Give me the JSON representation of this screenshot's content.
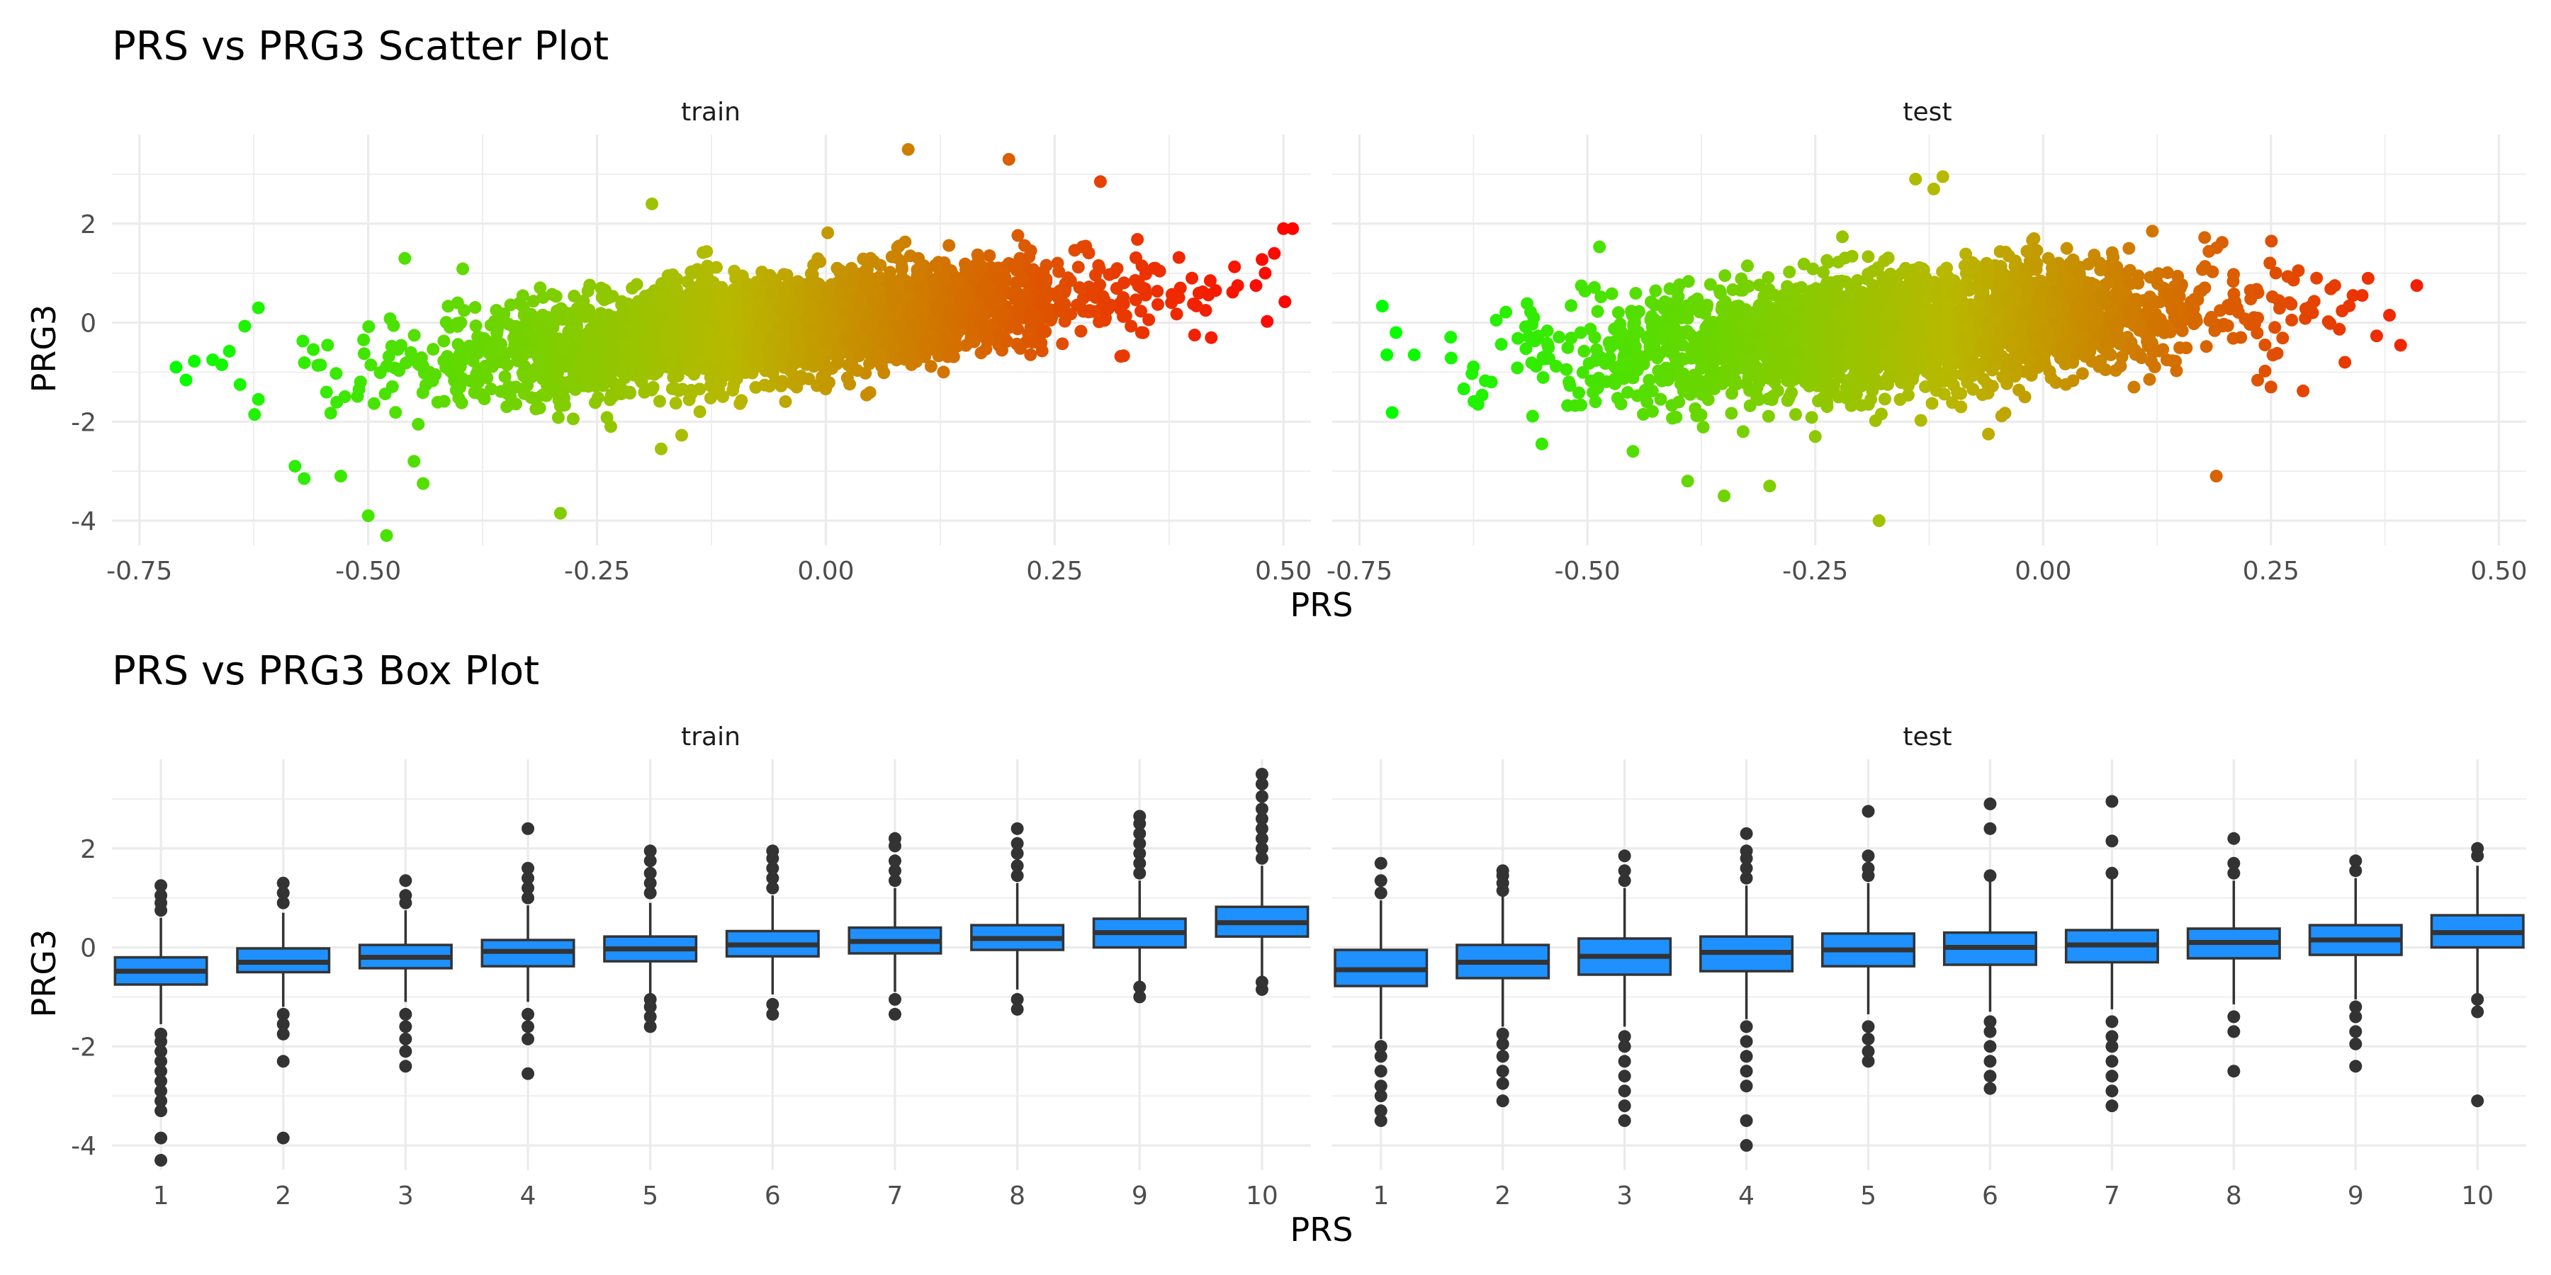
{
  "scatter": {
    "title": "PRS vs PRG3 Scatter Plot",
    "xlabel": "PRS",
    "ylabel": "PRG3",
    "x_ticks": [
      "-0.75",
      "-0.50",
      "-0.25",
      "0.00",
      "0.25",
      "0.50"
    ],
    "y_ticks": [
      "-4",
      "-2",
      "0",
      "2"
    ],
    "panels": [
      "train",
      "test"
    ]
  },
  "box": {
    "title": "PRS vs PRG3 Box Plot",
    "xlabel": "PRS",
    "ylabel": "PRG3",
    "x_ticks": [
      "1",
      "2",
      "3",
      "4",
      "5",
      "6",
      "7",
      "8",
      "9",
      "10"
    ],
    "y_ticks": [
      "-4",
      "-2",
      "0",
      "2"
    ],
    "panels": [
      "train",
      "test"
    ]
  },
  "colors": {
    "gradient_low": "#00ff00",
    "gradient_mid": "#b8b800",
    "gradient_high": "#ff0000",
    "box_fill": "#1e90ff",
    "box_line": "#333333",
    "grid": "#ebebeb"
  },
  "chart_data": [
    {
      "type": "scatter",
      "title": "PRS vs PRG3 Scatter Plot",
      "xlabel": "PRS",
      "ylabel": "PRG3",
      "xlim": [
        -0.78,
        0.53
      ],
      "ylim": [
        -4.5,
        3.8
      ],
      "x_ticks": [
        -0.75,
        -0.5,
        -0.25,
        0,
        0.25,
        0.5
      ],
      "y_ticks": [
        -4,
        -2,
        0,
        2
      ],
      "grid": true,
      "color_scale": "PRS: green (low) to red (high)",
      "panels": [
        {
          "name": "train",
          "trend": {
            "slope": 1.8,
            "intercept": 0.02,
            "spread_sd": 0.5
          },
          "x_range": [
            -0.72,
            0.51
          ],
          "notable_points": [
            [
              -0.71,
              -0.9
            ],
            [
              -0.69,
              -0.78
            ],
            [
              -0.67,
              -0.75
            ],
            [
              -0.66,
              -0.85
            ],
            [
              -0.64,
              -1.25
            ],
            [
              -0.62,
              -1.55
            ],
            [
              -0.62,
              0.3
            ],
            [
              -0.58,
              -2.9
            ],
            [
              -0.57,
              -3.15
            ],
            [
              -0.53,
              -3.1
            ],
            [
              -0.5,
              -3.9
            ],
            [
              -0.48,
              -4.3
            ],
            [
              -0.45,
              -2.8
            ],
            [
              -0.44,
              -3.25
            ],
            [
              -0.46,
              1.3
            ],
            [
              -0.36,
              0.25
            ],
            [
              -0.29,
              -3.85
            ],
            [
              -0.19,
              2.4
            ],
            [
              -0.18,
              -2.55
            ],
            [
              0.09,
              3.5
            ],
            [
              0.2,
              3.3
            ],
            [
              0.3,
              2.85
            ],
            [
              0.36,
              1.1
            ],
            [
              0.4,
              0.9
            ],
            [
              0.42,
              0.85
            ],
            [
              0.45,
              0.75
            ],
            [
              0.47,
              0.75
            ],
            [
              0.48,
              1.0
            ],
            [
              0.49,
              1.4
            ],
            [
              0.5,
              1.9
            ],
            [
              0.51,
              1.9
            ]
          ]
        },
        {
          "name": "test",
          "trend": {
            "slope": 1.35,
            "intercept": 0.05,
            "spread_sd": 0.6
          },
          "x_range": [
            -0.73,
            0.41
          ],
          "notable_points": [
            [
              -0.72,
              -0.65
            ],
            [
              -0.71,
              -0.2
            ],
            [
              -0.69,
              -0.65
            ],
            [
              -0.62,
              -1.65
            ],
            [
              -0.6,
              0.05
            ],
            [
              -0.55,
              -2.45
            ],
            [
              -0.45,
              -2.6
            ],
            [
              -0.39,
              -3.2
            ],
            [
              -0.35,
              -3.5
            ],
            [
              -0.3,
              -3.3
            ],
            [
              -0.25,
              -2.3
            ],
            [
              -0.18,
              -4.0
            ],
            [
              -0.14,
              2.9
            ],
            [
              -0.12,
              2.7
            ],
            [
              -0.11,
              2.95
            ],
            [
              -0.06,
              -2.25
            ],
            [
              -0.02,
              -1.5
            ],
            [
              0.19,
              -3.1
            ],
            [
              0.25,
              -1.3
            ],
            [
              0.28,
              1.05
            ],
            [
              0.3,
              0.9
            ],
            [
              0.32,
              0.75
            ],
            [
              0.34,
              0.55
            ],
            [
              0.35,
              0.55
            ],
            [
              0.38,
              0.15
            ],
            [
              0.41,
              0.75
            ]
          ]
        }
      ]
    },
    {
      "type": "box",
      "title": "PRS vs PRG3 Box Plot",
      "xlabel": "PRS",
      "ylabel": "PRG3",
      "categories": [
        "1",
        "2",
        "3",
        "4",
        "5",
        "6",
        "7",
        "8",
        "9",
        "10"
      ],
      "ylim": [
        -4.5,
        3.8
      ],
      "y_ticks": [
        -4,
        -2,
        0,
        2
      ],
      "grid": true,
      "panels": [
        {
          "name": "train",
          "boxes": [
            {
              "q1": -0.75,
              "median": -0.48,
              "q3": -0.2,
              "whisker_low": -1.55,
              "whisker_high": 0.6,
              "outliers": [
                -4.3,
                -3.85,
                -3.3,
                -3.1,
                -2.9,
                -2.7,
                -2.5,
                -2.3,
                -2.1,
                -1.9,
                -1.75,
                0.75,
                0.9,
                1.05,
                1.25
              ]
            },
            {
              "q1": -0.5,
              "median": -0.3,
              "q3": -0.02,
              "whisker_low": -1.2,
              "whisker_high": 0.7,
              "outliers": [
                -3.85,
                -2.3,
                -1.75,
                -1.55,
                -1.35,
                0.9,
                1.1,
                1.3
              ]
            },
            {
              "q1": -0.42,
              "median": -0.2,
              "q3": 0.05,
              "whisker_low": -1.1,
              "whisker_high": 0.75,
              "outliers": [
                -2.4,
                -2.1,
                -1.85,
                -1.6,
                -1.35,
                0.9,
                1.05,
                1.35
              ]
            },
            {
              "q1": -0.38,
              "median": -0.08,
              "q3": 0.15,
              "whisker_low": -1.1,
              "whisker_high": 0.85,
              "outliers": [
                -2.55,
                -1.85,
                -1.6,
                -1.35,
                1.0,
                1.2,
                1.4,
                1.6,
                2.4
              ]
            },
            {
              "q1": -0.28,
              "median": -0.03,
              "q3": 0.22,
              "whisker_low": -1.0,
              "whisker_high": 0.9,
              "outliers": [
                -1.6,
                -1.4,
                -1.2,
                -1.05,
                1.1,
                1.3,
                1.5,
                1.75,
                1.95
              ]
            },
            {
              "q1": -0.18,
              "median": 0.05,
              "q3": 0.33,
              "whisker_low": -0.95,
              "whisker_high": 1.05,
              "outliers": [
                -1.35,
                -1.15,
                1.2,
                1.4,
                1.6,
                1.8,
                1.95
              ]
            },
            {
              "q1": -0.12,
              "median": 0.12,
              "q3": 0.4,
              "whisker_low": -0.9,
              "whisker_high": 1.2,
              "outliers": [
                -1.35,
                -1.05,
                1.35,
                1.55,
                1.75,
                2.05,
                2.2
              ]
            },
            {
              "q1": -0.05,
              "median": 0.18,
              "q3": 0.45,
              "whisker_low": -0.85,
              "whisker_high": 1.3,
              "outliers": [
                -1.25,
                -1.05,
                1.45,
                1.65,
                1.9,
                2.1,
                2.4
              ]
            },
            {
              "q1": 0.0,
              "median": 0.3,
              "q3": 0.58,
              "whisker_low": -0.7,
              "whisker_high": 1.35,
              "outliers": [
                -1.0,
                -0.8,
                1.5,
                1.7,
                1.9,
                2.1,
                2.3,
                2.5,
                2.65
              ]
            },
            {
              "q1": 0.22,
              "median": 0.5,
              "q3": 0.82,
              "whisker_low": -0.6,
              "whisker_high": 1.65,
              "outliers": [
                -0.85,
                -0.7,
                1.8,
                2.0,
                2.2,
                2.4,
                2.6,
                2.8,
                3.05,
                3.3,
                3.5
              ]
            }
          ]
        },
        {
          "name": "test",
          "boxes": [
            {
              "q1": -0.78,
              "median": -0.45,
              "q3": -0.05,
              "whisker_low": -1.85,
              "whisker_high": 0.95,
              "outliers": [
                -3.5,
                -3.3,
                -3.0,
                -2.8,
                -2.5,
                -2.2,
                -2.0,
                1.1,
                1.35,
                1.7
              ]
            },
            {
              "q1": -0.62,
              "median": -0.3,
              "q3": 0.05,
              "whisker_low": -1.6,
              "whisker_high": 1.05,
              "outliers": [
                -3.1,
                -2.75,
                -2.5,
                -2.2,
                -1.95,
                -1.75,
                1.15,
                1.3,
                1.45,
                1.55
              ]
            },
            {
              "q1": -0.55,
              "median": -0.18,
              "q3": 0.18,
              "whisker_low": -1.6,
              "whisker_high": 1.2,
              "outliers": [
                -3.5,
                -3.2,
                -2.9,
                -2.6,
                -2.3,
                -2.0,
                -1.8,
                1.35,
                1.55,
                1.85
              ]
            },
            {
              "q1": -0.48,
              "median": -0.1,
              "q3": 0.22,
              "whisker_low": -1.45,
              "whisker_high": 1.25,
              "outliers": [
                -4.0,
                -3.5,
                -2.8,
                -2.5,
                -2.2,
                -1.9,
                -1.6,
                1.4,
                1.6,
                1.8,
                1.95,
                2.3
              ]
            },
            {
              "q1": -0.38,
              "median": -0.05,
              "q3": 0.28,
              "whisker_low": -1.35,
              "whisker_high": 1.3,
              "outliers": [
                -2.3,
                -2.1,
                -1.85,
                -1.6,
                1.45,
                1.6,
                1.85,
                2.75
              ]
            },
            {
              "q1": -0.35,
              "median": 0.0,
              "q3": 0.3,
              "whisker_low": -1.3,
              "whisker_high": 1.35,
              "outliers": [
                -2.85,
                -2.6,
                -2.3,
                -2.0,
                -1.7,
                -1.5,
                1.45,
                2.4,
                2.9
              ]
            },
            {
              "q1": -0.3,
              "median": 0.05,
              "q3": 0.35,
              "whisker_low": -1.25,
              "whisker_high": 1.4,
              "outliers": [
                -3.2,
                -2.9,
                -2.6,
                -2.3,
                -2.0,
                -1.8,
                -1.5,
                1.5,
                2.15,
                2.95
              ]
            },
            {
              "q1": -0.22,
              "median": 0.1,
              "q3": 0.38,
              "whisker_low": -1.15,
              "whisker_high": 1.35,
              "outliers": [
                -2.5,
                -1.7,
                -1.4,
                1.5,
                1.7,
                2.2
              ]
            },
            {
              "q1": -0.15,
              "median": 0.15,
              "q3": 0.45,
              "whisker_low": -1.05,
              "whisker_high": 1.4,
              "outliers": [
                -2.4,
                -1.95,
                -1.7,
                -1.4,
                -1.2,
                1.55,
                1.75
              ]
            },
            {
              "q1": 0.0,
              "median": 0.3,
              "q3": 0.65,
              "whisker_low": -0.95,
              "whisker_high": 1.65,
              "outliers": [
                -3.1,
                -1.3,
                -1.05,
                1.85,
                2.0
              ]
            }
          ]
        }
      ]
    }
  ]
}
